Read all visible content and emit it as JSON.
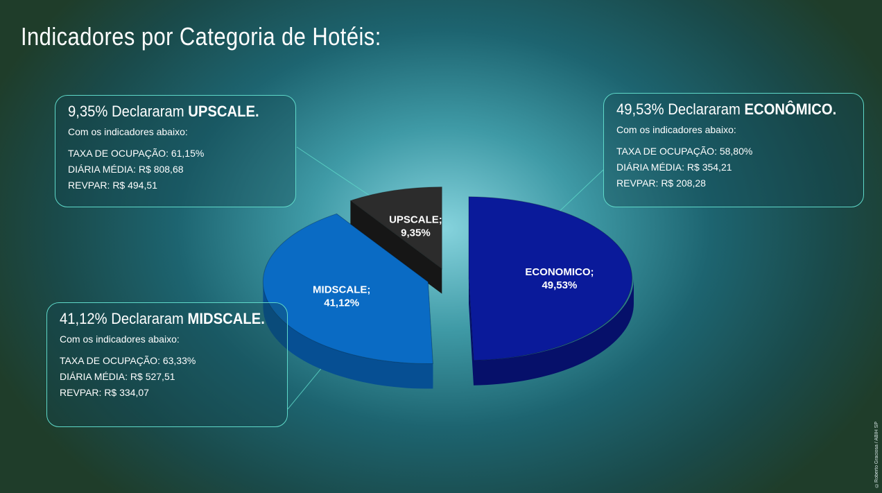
{
  "page": {
    "title": "Indicadores por Categoria de Hotéis:",
    "credit": "©Roberto Graciosa / ABIH SP"
  },
  "callouts": {
    "upscale": {
      "headline_pre": "9,35% Declararam ",
      "headline_bold": "UPSCALE.",
      "sub": "Com os indicadores abaixo:",
      "stats": [
        "TAXA DE OCUPAÇÃO: 61,15%",
        "DIÁRIA MÉDIA: R$ 808,68",
        "REVPAR: R$ 494,51"
      ]
    },
    "economico": {
      "headline_pre": "49,53% Declararam ",
      "headline_bold": "ECONÔMICO.",
      "sub": "Com os indicadores abaixo:",
      "stats": [
        "TAXA DE OCUPAÇÃO: 58,80%",
        "DIÁRIA MÉDIA: R$  354,21",
        "REVPAR: R$ 208,28"
      ]
    },
    "midscale": {
      "headline_pre": "41,12% Declararam ",
      "headline_bold": "MIDSCALE.",
      "sub": "Com os indicadores abaixo:",
      "stats": [
        "TAXA DE OCUPAÇÃO: 63,33%",
        "DIÁRIA MÉDIA: R$ 527,51",
        "REVPAR: R$ 334,07"
      ]
    }
  },
  "chart_data": {
    "type": "pie",
    "style": "3d-exploded",
    "title": "",
    "slices": [
      {
        "label": "ECONOMICO",
        "value": 49.53,
        "display": "49,53%",
        "color": "#0a1a9a",
        "side_color": "#06106a"
      },
      {
        "label": "MIDSCALE",
        "value": 41.12,
        "display": "41,12%",
        "color": "#0a6bc4",
        "side_color": "#064f93"
      },
      {
        "label": "UPSCALE",
        "value": 9.35,
        "display": "9,35%",
        "color": "#2c2c2c",
        "side_color": "#161616"
      }
    ],
    "accent_border": "#5fd9c9"
  }
}
